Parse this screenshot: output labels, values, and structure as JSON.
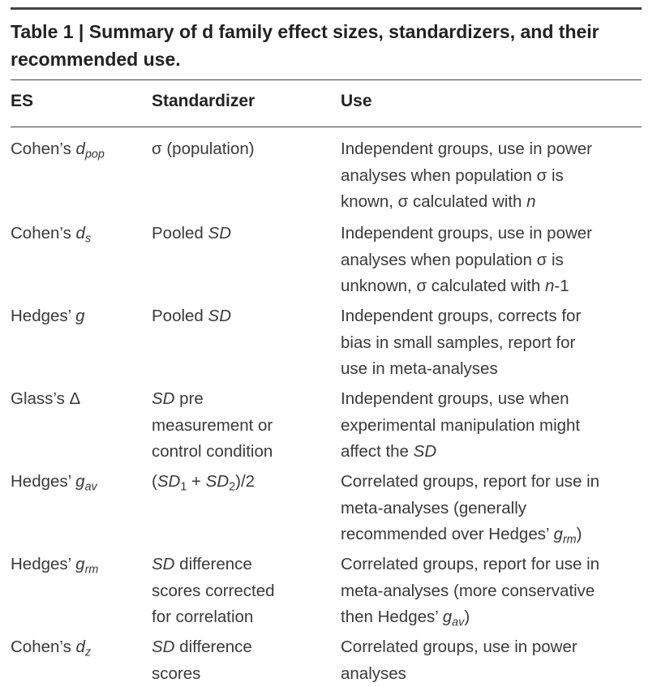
{
  "table": {
    "title": "Table 1 | Summary of d family effect sizes, standardizers, and their recommended use.",
    "headers": {
      "es": "ES",
      "standardizer": "Standardizer",
      "use": "Use"
    },
    "rows": [
      {
        "es": [
          "Cohen's ",
          {
            "i": "d",
            "sub": "pop"
          }
        ],
        "standardizer": [
          [
            "σ (population)"
          ]
        ],
        "use": [
          [
            "Independent groups, use in power"
          ],
          [
            "analyses when population σ is"
          ],
          [
            "known, σ calculated with ",
            {
              "i": "n"
            }
          ]
        ]
      },
      {
        "es": [
          "Cohen's ",
          {
            "i": "d",
            "sub": "s"
          }
        ],
        "standardizer": [
          [
            "Pooled ",
            {
              "i": "SD"
            }
          ]
        ],
        "use": [
          [
            "Independent groups, use in power"
          ],
          [
            "analyses when population σ is"
          ],
          [
            "unknown, σ calculated with ",
            {
              "i": "n"
            },
            "-1"
          ]
        ]
      },
      {
        "es": [
          "Hedges' ",
          {
            "i": "g"
          }
        ],
        "standardizer": [
          [
            "Pooled ",
            {
              "i": "SD"
            }
          ]
        ],
        "use": [
          [
            "Independent groups, corrects for"
          ],
          [
            "bias in small samples, report for"
          ],
          [
            "use in meta-analyses"
          ]
        ]
      },
      {
        "es": [
          "Glass's Δ"
        ],
        "standardizer": [
          [
            {
              "i": "SD"
            },
            " pre"
          ],
          [
            "measurement or"
          ],
          [
            "control condition"
          ]
        ],
        "use": [
          [
            "Independent groups, use when"
          ],
          [
            "experimental manipulation might"
          ],
          [
            "affect the ",
            {
              "i": "SD"
            }
          ]
        ]
      },
      {
        "es": [
          "Hedges' ",
          {
            "i": "g",
            "sub": "av"
          }
        ],
        "standardizer": [
          [
            "(",
            {
              "i": "SD",
              "subn": "1"
            },
            " + ",
            {
              "i": "SD",
              "subn": "2"
            },
            ")/2"
          ]
        ],
        "use": [
          [
            "Correlated groups, report for use in"
          ],
          [
            "meta-analyses (generally"
          ],
          [
            "recommended over Hedges' ",
            {
              "i": "g",
              "sub": "rm"
            },
            ")"
          ]
        ]
      },
      {
        "es": [
          "Hedges' ",
          {
            "i": "g",
            "sub": "rm"
          }
        ],
        "standardizer": [
          [
            {
              "i": "SD"
            },
            " difference"
          ],
          [
            "scores corrected"
          ],
          [
            "for correlation"
          ]
        ],
        "use": [
          [
            "Correlated groups, report for use in"
          ],
          [
            "meta-analyses (more conservative"
          ],
          [
            "then Hedges' ",
            {
              "i": "g",
              "sub": "av"
            },
            ")"
          ]
        ]
      },
      {
        "es": [
          "Cohen's ",
          {
            "i": "d",
            "sub": "z"
          }
        ],
        "standardizer": [
          [
            {
              "i": "SD"
            },
            " difference"
          ],
          [
            "scores"
          ]
        ],
        "use": [
          [
            "Correlated groups, use in power"
          ],
          [
            "analyses"
          ]
        ]
      }
    ]
  }
}
